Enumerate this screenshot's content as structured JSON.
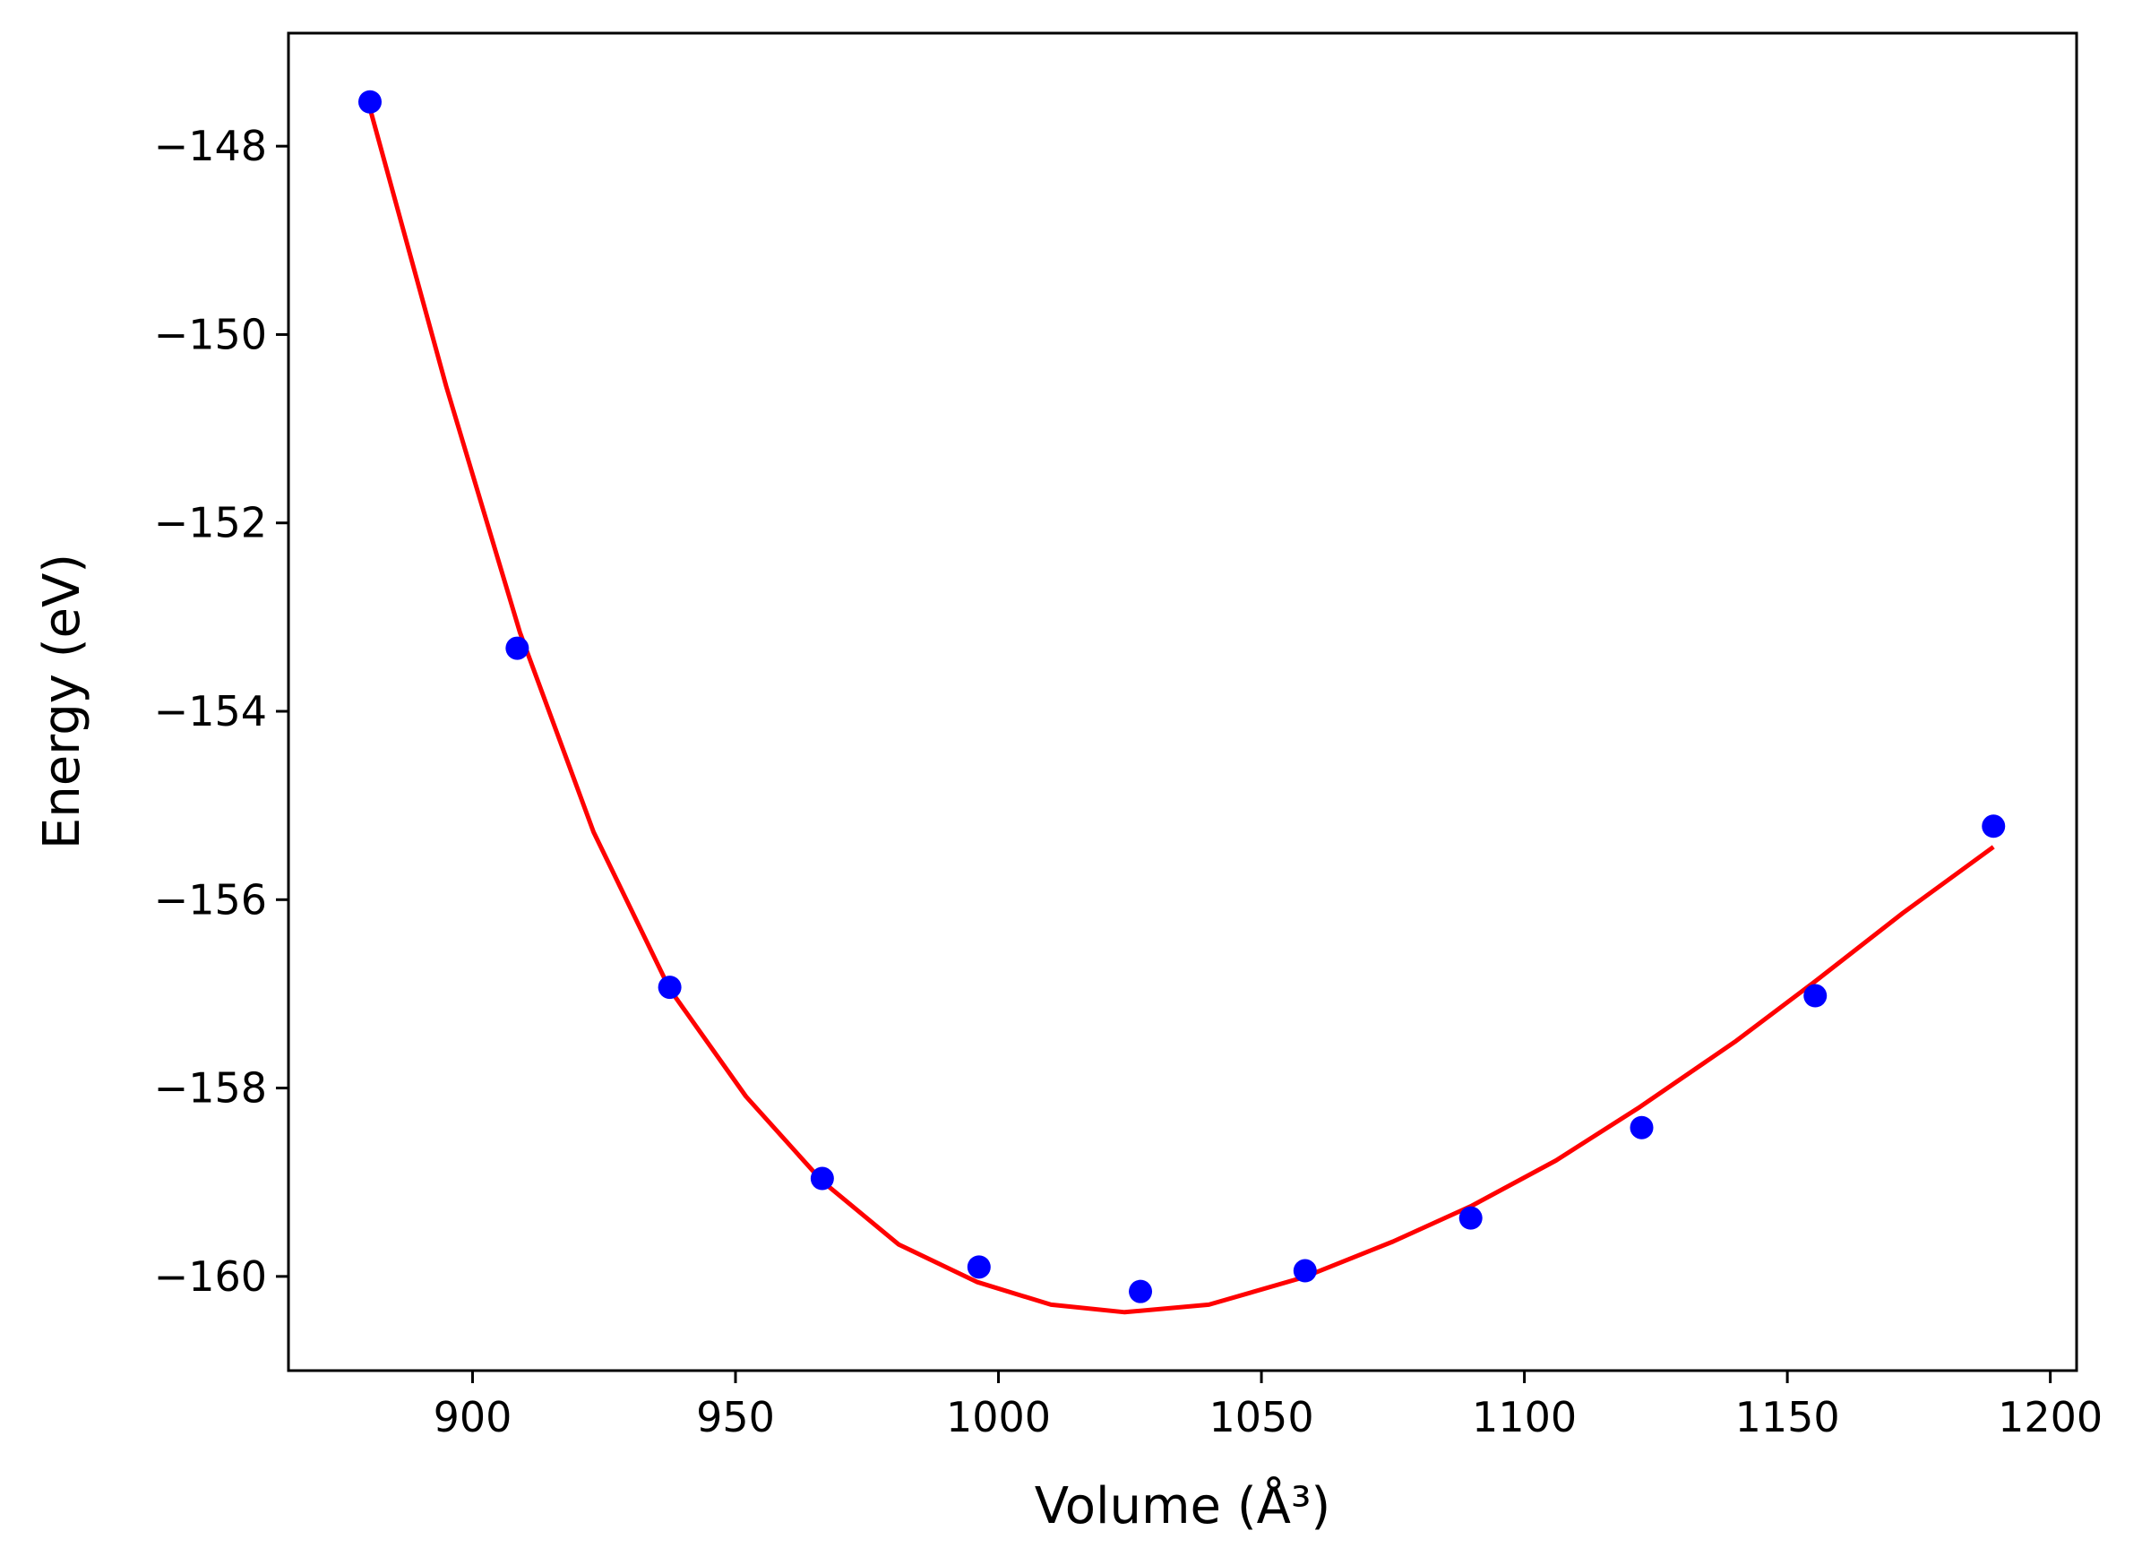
{
  "chart_data": {
    "type": "scatter",
    "xlabel": "Volume (Å³)",
    "ylabel": "Energy (eV)",
    "xlim": [
      865,
      1205
    ],
    "ylim": [
      -161,
      -146.8
    ],
    "xticks": [
      900,
      950,
      1000,
      1050,
      1100,
      1150,
      1200
    ],
    "yticks": [
      -148,
      -150,
      -152,
      -154,
      -156,
      -158,
      -160
    ],
    "xtick_labels": [
      "900",
      "950",
      "1000",
      "1050",
      "1100",
      "1150",
      "1200"
    ],
    "ytick_labels": [
      "−148",
      "−150",
      "−152",
      "−154",
      "−156",
      "−158",
      "−160"
    ],
    "grid": false,
    "series": [
      {
        "kind": "points",
        "color": "#0000ff",
        "x": [
          880.5,
          908.5,
          937.5,
          966.5,
          996.3,
          1027.0,
          1058.3,
          1089.8,
          1122.3,
          1155.3,
          1189.2
        ],
        "y": [
          -147.53,
          -153.33,
          -156.93,
          -158.96,
          -159.9,
          -160.16,
          -159.94,
          -159.38,
          -158.42,
          -157.02,
          -155.22
        ]
      },
      {
        "kind": "fit",
        "color": "#ff0000",
        "x": [
          880.5,
          895,
          909,
          923,
          937.5,
          952,
          966.5,
          981,
          996,
          1010,
          1024,
          1040,
          1058,
          1075,
          1090,
          1106,
          1122,
          1140,
          1155,
          1172,
          1189.2
        ],
        "y": [
          -147.6,
          -150.55,
          -153.16,
          -155.28,
          -156.95,
          -158.09,
          -158.99,
          -159.66,
          -160.06,
          -160.3,
          -160.38,
          -160.3,
          -160.01,
          -159.63,
          -159.25,
          -158.77,
          -158.2,
          -157.51,
          -156.88,
          -156.14,
          -155.44
        ]
      }
    ]
  }
}
